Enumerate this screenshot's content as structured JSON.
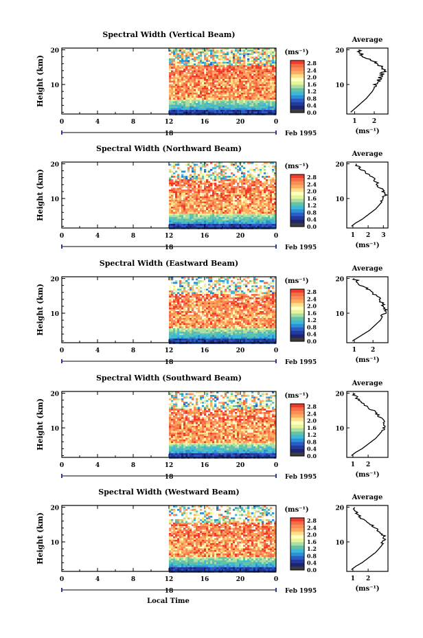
{
  "figure": {
    "xlabel_bottom": "Local Time",
    "date_label": "Feb 1995",
    "date_day": "18"
  },
  "colorbar": {
    "unit": "(ms⁻¹)",
    "ticks": [
      "2.8",
      "2.4",
      "2.0",
      "1.6",
      "1.2",
      "0.8",
      "0.4",
      "0.0"
    ],
    "colors": [
      "#ef3b2c",
      "#f46d43",
      "#fc8d59",
      "#fdae61",
      "#fee08b",
      "#ffffbf",
      "#e6f598",
      "#abdda4",
      "#66c2a5",
      "#3fb8d8",
      "#2d8fd6",
      "#2b5cc4",
      "#233a9e",
      "#1d2472",
      "#3b3b3b"
    ]
  },
  "chart_data": [
    {
      "type": "heatmap",
      "title": "Spectral Width (Vertical Beam)",
      "ylabel": "Height (km)",
      "x_ticks": [
        "0",
        "4",
        "8",
        "12",
        "16",
        "20",
        "0"
      ],
      "x_range_hours": [
        0,
        24
      ],
      "y_ticks": [
        "20",
        "10"
      ],
      "y_range_km": [
        1.5,
        20.5
      ],
      "data_start_hour": 12,
      "profile": {
        "title": "Average",
        "xlabel": "(ms⁻¹)",
        "x_ticks": [
          "1",
          "2"
        ],
        "x_tick_values": [
          1,
          2
        ],
        "x_range": [
          0.6,
          2.7
        ],
        "y_ticks": [
          "20",
          "10"
        ],
        "heights_km": [
          2,
          3,
          4,
          5,
          6,
          7,
          8,
          9,
          10,
          11,
          12,
          13,
          14,
          15,
          16,
          17,
          18,
          19,
          20
        ],
        "values": [
          0.8,
          1.0,
          1.2,
          1.4,
          1.6,
          1.75,
          1.9,
          2.0,
          2.1,
          2.2,
          2.3,
          2.4,
          2.5,
          2.4,
          2.2,
          1.8,
          1.5,
          1.3,
          1.2
        ]
      }
    },
    {
      "type": "heatmap",
      "title": "Spectral Width (Northward Beam)",
      "ylabel": "Height (km)",
      "x_ticks": [
        "0",
        "4",
        "8",
        "12",
        "16",
        "20",
        "0"
      ],
      "x_range_hours": [
        0,
        24
      ],
      "y_ticks": [
        "20",
        "10"
      ],
      "y_range_km": [
        1.5,
        20.5
      ],
      "data_start_hour": 12,
      "profile": {
        "title": "Average",
        "xlabel": "(ms⁻¹)",
        "x_ticks": [
          "1",
          "2",
          "3"
        ],
        "x_tick_values": [
          1,
          2,
          3
        ],
        "x_range": [
          0.6,
          3.3
        ],
        "y_ticks": [
          "20",
          "10"
        ],
        "heights_km": [
          2,
          3,
          4,
          5,
          6,
          7,
          8,
          9,
          10,
          11,
          12,
          13,
          14,
          15,
          16,
          17,
          18,
          19,
          20
        ],
        "values": [
          0.9,
          1.2,
          1.6,
          1.9,
          2.2,
          2.5,
          2.7,
          2.9,
          3.0,
          3.1,
          3.0,
          2.8,
          2.6,
          2.5,
          2.3,
          2.0,
          1.7,
          1.4,
          1.2
        ]
      }
    },
    {
      "type": "heatmap",
      "title": "Spectral Width (Eastward Beam)",
      "ylabel": "Height (km)",
      "x_ticks": [
        "0",
        "4",
        "8",
        "12",
        "16",
        "20",
        "0"
      ],
      "x_range_hours": [
        0,
        24
      ],
      "y_ticks": [
        "20",
        "10"
      ],
      "y_range_km": [
        1.5,
        20.5
      ],
      "data_start_hour": 12,
      "profile": {
        "title": "Average",
        "xlabel": "(ms⁻¹)",
        "x_ticks": [
          "1",
          "2"
        ],
        "x_tick_values": [
          1,
          2
        ],
        "x_range": [
          0.6,
          2.8
        ],
        "y_ticks": [
          "20",
          "10"
        ],
        "heights_km": [
          2,
          3,
          4,
          5,
          6,
          7,
          8,
          9,
          10,
          11,
          12,
          13,
          14,
          15,
          16,
          17,
          18,
          19,
          20
        ],
        "values": [
          0.9,
          1.2,
          1.5,
          1.8,
          2.0,
          2.2,
          2.4,
          2.5,
          2.6,
          2.7,
          2.6,
          2.5,
          2.3,
          2.2,
          2.0,
          1.7,
          1.4,
          1.2,
          1.0
        ]
      }
    },
    {
      "type": "heatmap",
      "title": "Spectral Width (Southward Beam)",
      "ylabel": "Height (km)",
      "x_ticks": [
        "0",
        "4",
        "8",
        "12",
        "16",
        "20",
        "0"
      ],
      "x_range_hours": [
        0,
        24
      ],
      "y_ticks": [
        "20",
        "10"
      ],
      "y_range_km": [
        1.5,
        20.5
      ],
      "data_start_hour": 12,
      "profile": {
        "title": "Average",
        "xlabel": "(ms⁻¹)",
        "x_ticks": [
          "1",
          "2"
        ],
        "x_tick_values": [
          1,
          2
        ],
        "x_range": [
          0.6,
          3.3
        ],
        "y_ticks": [
          "20",
          "10"
        ],
        "heights_km": [
          2,
          3,
          4,
          5,
          6,
          7,
          8,
          9,
          10,
          11,
          12,
          13,
          14,
          15,
          16,
          17,
          18,
          19,
          20
        ],
        "values": [
          0.9,
          1.2,
          1.6,
          1.9,
          2.2,
          2.5,
          2.7,
          2.9,
          3.0,
          3.1,
          3.0,
          2.8,
          2.6,
          2.3,
          2.0,
          1.7,
          1.4,
          1.2,
          1.0
        ]
      }
    },
    {
      "type": "heatmap",
      "title": "Spectral Width (Westward Beam)",
      "ylabel": "Height (km)",
      "x_ticks": [
        "0",
        "4",
        "8",
        "12",
        "16",
        "20",
        "0"
      ],
      "x_range_hours": [
        0,
        24
      ],
      "y_ticks": [
        "20",
        "10"
      ],
      "y_range_km": [
        1.5,
        20.5
      ],
      "data_start_hour": 12,
      "profile": {
        "title": "Average",
        "xlabel": "(ms⁻¹)",
        "x_ticks": [
          "1",
          "2"
        ],
        "x_tick_values": [
          1,
          2
        ],
        "x_range": [
          0.6,
          3.3
        ],
        "y_ticks": [
          "20",
          "10"
        ],
        "heights_km": [
          2,
          3,
          4,
          5,
          6,
          7,
          8,
          9,
          10,
          11,
          12,
          13,
          14,
          15,
          16,
          17,
          18,
          19,
          20
        ],
        "values": [
          0.9,
          1.2,
          1.6,
          1.9,
          2.2,
          2.5,
          2.7,
          2.9,
          3.0,
          3.1,
          3.0,
          2.7,
          2.5,
          2.2,
          1.8,
          1.5,
          1.3,
          1.2,
          1.1
        ]
      }
    }
  ]
}
